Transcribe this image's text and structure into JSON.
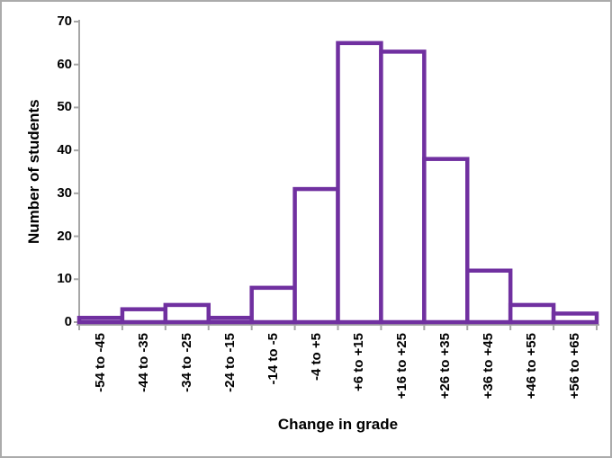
{
  "chart_data": {
    "type": "bar",
    "subtype": "histogram",
    "title": "",
    "xlabel": "Change in grade",
    "ylabel": "Number of students",
    "categories": [
      "-54 to -45",
      "-44 to -35",
      "-34 to -25",
      "-24 to -15",
      "-14 to -5",
      "-4 to +5",
      "+6 to +15",
      "+16 to +25",
      "+26 to +35",
      "+36 to +45",
      "+46 to +55",
      "+56 to +65"
    ],
    "values": [
      1,
      3,
      4,
      1,
      8,
      31,
      65,
      63,
      38,
      12,
      4,
      2
    ],
    "ylim": [
      0,
      70
    ],
    "yticks": [
      0,
      10,
      20,
      30,
      40,
      50,
      60,
      70
    ],
    "grid": false,
    "legend": null,
    "colors": {
      "bar_outline": "#7030A0",
      "bar_fill": "#FFFFFF",
      "axis": "#A6A6A6",
      "text": "#000000",
      "frame_border": "#ABABAB",
      "background": "#FFFFFF"
    }
  }
}
